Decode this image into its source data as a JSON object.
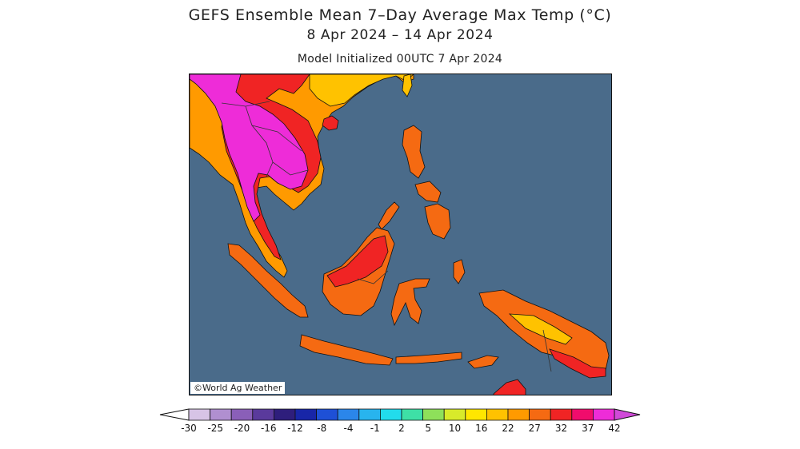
{
  "title": {
    "line1": "GEFS Ensemble Mean 7–Day Average Max Temp (°C)",
    "line2": "8 Apr 2024 – 14 Apr 2024",
    "line3": "Model Initialized 00UTC 7 Apr 2024"
  },
  "credit": "©World Ag Weather",
  "colors": {
    "ocean": "#4a6b8a",
    "coast": "#111111",
    "border": "#333333"
  },
  "legend": {
    "left_arrow_color": "#ffffff",
    "right_arrow_color": "#d04ad8",
    "bins": [
      "#d7c4e6",
      "#b08fd0",
      "#8a5fb8",
      "#5a3a9c",
      "#2e1e7c",
      "#1826a8",
      "#1e50d6",
      "#2b86ea",
      "#28b4ee",
      "#22dcec",
      "#3ee0a6",
      "#8ee05a",
      "#d8ea2a",
      "#ffe600",
      "#ffc200",
      "#ff9a00",
      "#f56a12",
      "#f02424",
      "#f00c6c",
      "#ee2cd8"
    ],
    "tick_labels": [
      "-30",
      "-25",
      "-20",
      "-16",
      "-12",
      "-8",
      "-4",
      "-1",
      "2",
      "5",
      "10",
      "16",
      "22",
      "27",
      "32",
      "37",
      "42"
    ]
  },
  "temperature_classes": {
    "moderate": "#ff9a00",
    "hot": "#f56a12",
    "very_hot": "#f02424",
    "extreme": "#ee2cd8",
    "mild": "#ffc200",
    "cool": "#ffe600"
  }
}
